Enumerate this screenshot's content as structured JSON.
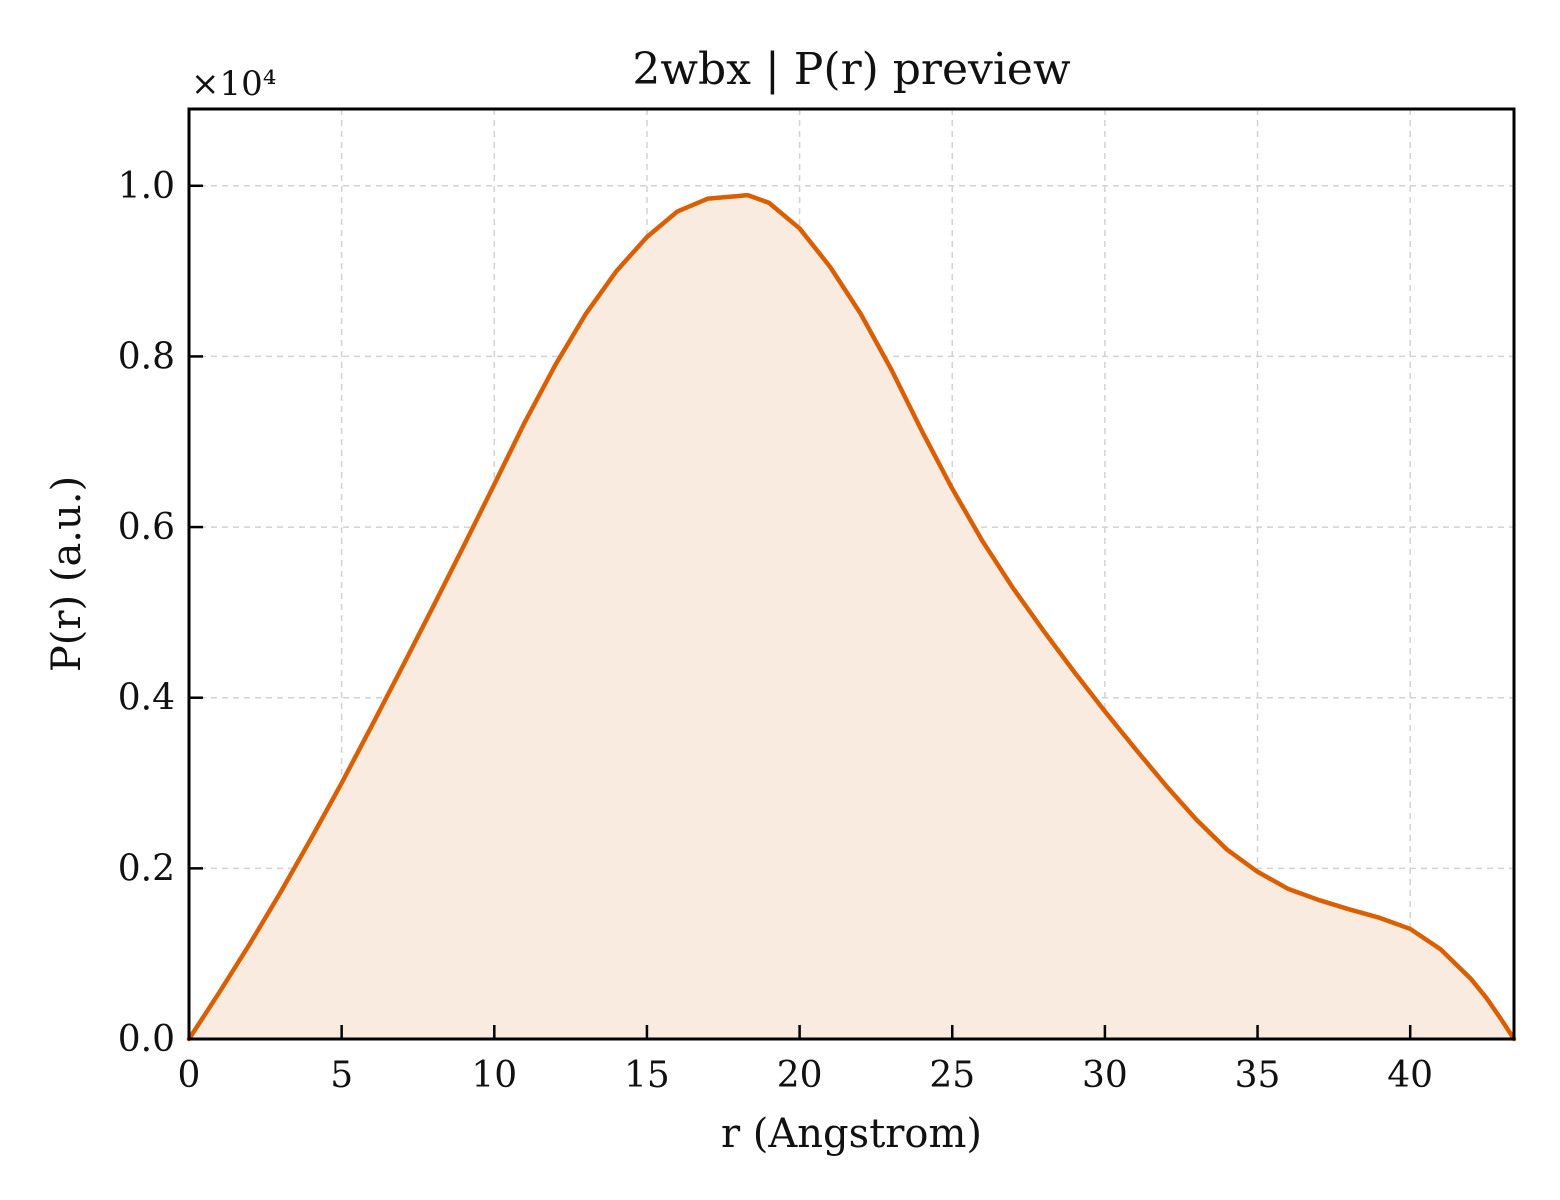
{
  "chart_data": {
    "type": "line",
    "title": "2wbx | P(r) preview",
    "xlabel": "r (Angstrom)",
    "ylabel": "P(r) (a.u.)",
    "y_multiplier": "×10⁴",
    "xlim": [
      0,
      43.4
    ],
    "ylim": [
      0,
      10900
    ],
    "xticks": [
      0,
      5,
      10,
      15,
      20,
      25,
      30,
      35,
      40
    ],
    "xtick_labels": [
      "0",
      "5",
      "10",
      "15",
      "20",
      "25",
      "30",
      "35",
      "40"
    ],
    "yticks": [
      0,
      2000,
      4000,
      6000,
      8000,
      10000
    ],
    "ytick_labels": [
      "0.0",
      "0.2",
      "0.4",
      "0.6",
      "0.8",
      "1.0"
    ],
    "grid": true,
    "line_color": "#d95f02",
    "fill_color": "#faebe0",
    "series": [
      {
        "x": [
          0,
          1,
          2,
          3,
          4,
          5,
          6,
          7,
          8,
          9,
          10,
          11,
          12,
          13,
          14,
          15,
          16,
          17,
          18,
          18.3,
          19,
          20,
          21,
          22,
          23,
          24,
          25,
          26,
          27,
          28,
          29,
          30,
          31,
          32,
          33,
          34,
          35,
          36,
          37,
          38,
          39,
          40,
          41,
          42,
          42.5,
          43,
          43.4
        ],
        "y": [
          0,
          550,
          1120,
          1720,
          2350,
          3000,
          3680,
          4370,
          5070,
          5780,
          6500,
          7230,
          7900,
          8500,
          9000,
          9400,
          9700,
          9850,
          9880,
          9890,
          9800,
          9500,
          9050,
          8500,
          7850,
          7130,
          6450,
          5830,
          5280,
          4780,
          4300,
          3840,
          3400,
          2970,
          2570,
          2220,
          1960,
          1760,
          1630,
          1520,
          1420,
          1290,
          1050,
          700,
          480,
          220,
          0
        ]
      }
    ]
  }
}
